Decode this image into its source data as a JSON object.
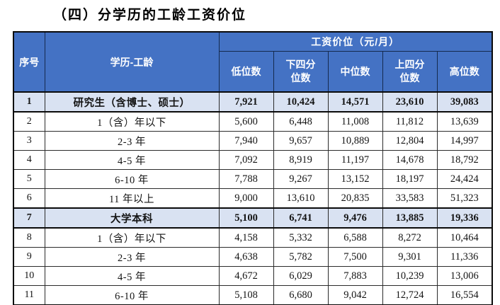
{
  "page": {
    "title": "（四）分学历的工龄工资价位"
  },
  "table": {
    "header": {
      "col_no": "序号",
      "col_education": "学历-工龄",
      "group_title": "工资价位（元/月）",
      "sub_columns": [
        "低位数",
        "下四分位数",
        "中位数",
        "上四分位数",
        "高位数"
      ]
    },
    "rows": [
      {
        "no": "1",
        "label": "研究生（含博士、硕士）",
        "values": [
          "7,921",
          "10,424",
          "14,571",
          "23,610",
          "39,083"
        ],
        "highlight": true
      },
      {
        "no": "2",
        "label": "1（含）年以下",
        "values": [
          "5,600",
          "6,448",
          "11,008",
          "11,812",
          "13,639"
        ],
        "highlight": false
      },
      {
        "no": "3",
        "label": "2-3 年",
        "values": [
          "7,940",
          "9,657",
          "10,889",
          "12,804",
          "14,997"
        ],
        "highlight": false
      },
      {
        "no": "4",
        "label": "4-5 年",
        "values": [
          "7,092",
          "8,919",
          "11,197",
          "14,678",
          "18,792"
        ],
        "highlight": false
      },
      {
        "no": "5",
        "label": "6-10 年",
        "values": [
          "7,788",
          "9,267",
          "13,152",
          "18,197",
          "24,424"
        ],
        "highlight": false
      },
      {
        "no": "6",
        "label": "11 年以上",
        "values": [
          "9,000",
          "13,610",
          "20,835",
          "33,583",
          "51,323"
        ],
        "highlight": false
      },
      {
        "no": "7",
        "label": "大学本科",
        "values": [
          "5,100",
          "6,741",
          "9,476",
          "13,885",
          "19,336"
        ],
        "highlight": true
      },
      {
        "no": "8",
        "label": "1（含）年以下",
        "values": [
          "4,158",
          "5,332",
          "6,588",
          "8,272",
          "10,464"
        ],
        "highlight": false
      },
      {
        "no": "9",
        "label": "2-3 年",
        "values": [
          "4,638",
          "5,782",
          "7,500",
          "9,301",
          "11,336"
        ],
        "highlight": false
      },
      {
        "no": "10",
        "label": "4-5 年",
        "values": [
          "4,672",
          "6,029",
          "7,883",
          "10,239",
          "13,006"
        ],
        "highlight": false
      },
      {
        "no": "11",
        "label": "6-10 年",
        "values": [
          "5,108",
          "6,680",
          "9,042",
          "12,724",
          "16,554"
        ],
        "highlight": false
      }
    ],
    "colors": {
      "header_bg": "#4472C4",
      "header_text": "#FFFFFF",
      "highlight_bg": "#D9E2F2",
      "border_dark": "#0A0A0A"
    }
  }
}
